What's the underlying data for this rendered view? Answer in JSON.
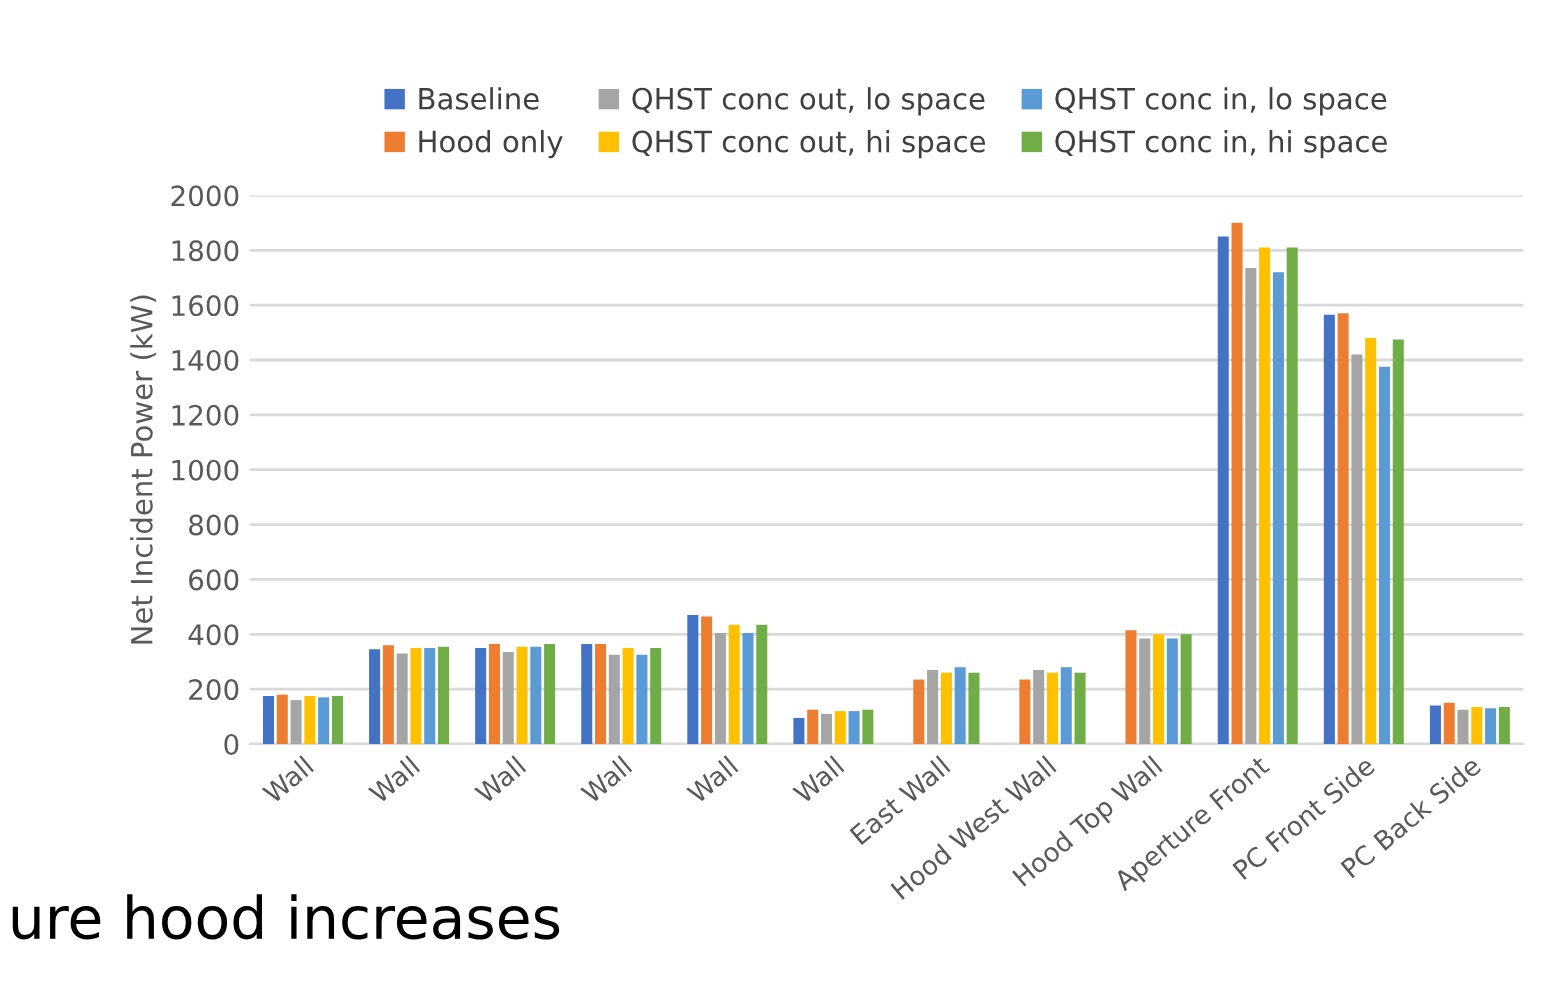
{
  "chart_data": {
    "type": "bar",
    "ylabel": "Net Incident Power (kW)",
    "categories": [
      "Wall",
      "Wall",
      "Wall",
      "Wall",
      "Wall",
      "Wall",
      "East Wall",
      "Hood West Wall",
      "Hood Top Wall",
      "Aperture Front",
      "PC Front Side",
      "PC Back Side"
    ],
    "series": [
      {
        "name": "Baseline",
        "color": "#4472c4",
        "values": [
          175,
          345,
          350,
          365,
          470,
          95,
          null,
          null,
          null,
          1850,
          1565,
          140
        ]
      },
      {
        "name": "Hood only",
        "color": "#ed7d31",
        "values": [
          180,
          360,
          365,
          365,
          465,
          125,
          235,
          235,
          415,
          1900,
          1570,
          150
        ]
      },
      {
        "name": "QHST conc out, lo space",
        "color": "#a5a5a5",
        "values": [
          160,
          330,
          335,
          325,
          405,
          110,
          270,
          270,
          385,
          1735,
          1420,
          125
        ]
      },
      {
        "name": "QHST conc out, hi space",
        "color": "#ffc000",
        "values": [
          175,
          350,
          355,
          350,
          435,
          120,
          260,
          260,
          400,
          1810,
          1480,
          135
        ]
      },
      {
        "name": "QHST conc in, lo space",
        "color": "#5b9bd5",
        "values": [
          170,
          350,
          355,
          325,
          405,
          120,
          280,
          280,
          385,
          1720,
          1375,
          130
        ]
      },
      {
        "name": "QHST conc in, hi space",
        "color": "#70ad47",
        "values": [
          175,
          355,
          365,
          350,
          435,
          125,
          260,
          260,
          400,
          1810,
          1475,
          135
        ]
      }
    ],
    "ylim": [
      0,
      2000
    ],
    "yticks": [
      0,
      200,
      400,
      600,
      800,
      1000,
      1200,
      1400,
      1600,
      1800,
      2000
    ],
    "grid": "y",
    "legend": "top",
    "annotations": [
      "ure hood increases"
    ]
  }
}
